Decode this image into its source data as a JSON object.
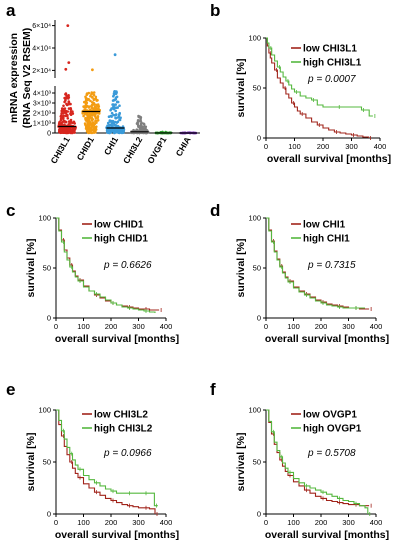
{
  "chart_data": [
    {
      "panel": "a",
      "type": "scatter",
      "ylabel": "mRNA expression\n(RNA Seq V2 RSEM)",
      "yticks_lower": [
        "0",
        "1×10³",
        "2×10³",
        "3×10³",
        "4×10³"
      ],
      "yticks_upper": [
        "2×10⁴",
        "4×10⁴",
        "6×10⁴"
      ],
      "categories": [
        "CHI3L1",
        "CHID1",
        "CHI1",
        "CHI3L2",
        "OVGP1",
        "CHIA"
      ],
      "colors": [
        "#d7261e",
        "#f39c12",
        "#3a9ad9",
        "#7f7f7f",
        "#2ca02c",
        "#7b2fbe"
      ],
      "medians": [
        650,
        2150,
        500,
        120,
        5,
        3
      ],
      "spread_max": [
        4000,
        4100,
        4200,
        1700,
        120,
        40
      ],
      "outliers_high": [
        [
          60000,
          27000,
          21000
        ],
        [
          20500
        ],
        [
          34000
        ],
        [],
        [],
        []
      ]
    },
    {
      "panel": "b",
      "type": "line",
      "xlabel": "overall survival [months]",
      "ylabel": "survival [%]",
      "xlim": [
        0,
        400
      ],
      "ylim": [
        0,
        100
      ],
      "xticks": [
        0,
        100,
        200,
        300,
        400
      ],
      "yticks": [
        0,
        50,
        100
      ],
      "p_value": "p = 0.0007",
      "series": [
        {
          "name": "low CHI3L1",
          "color": "#a1241b",
          "points": [
            [
              0,
              100
            ],
            [
              5,
              92
            ],
            [
              10,
              85
            ],
            [
              15,
              80
            ],
            [
              20,
              75
            ],
            [
              30,
              68
            ],
            [
              40,
              60
            ],
            [
              50,
              55
            ],
            [
              60,
              50
            ],
            [
              70,
              44
            ],
            [
              80,
              40
            ],
            [
              90,
              35
            ],
            [
              100,
              31
            ],
            [
              110,
              27
            ],
            [
              120,
              24
            ],
            [
              140,
              20
            ],
            [
              160,
              16
            ],
            [
              180,
              13
            ],
            [
              200,
              10
            ],
            [
              220,
              8
            ],
            [
              240,
              6
            ],
            [
              260,
              5
            ],
            [
              280,
              4
            ],
            [
              300,
              3
            ],
            [
              320,
              2
            ],
            [
              340,
              1
            ],
            [
              360,
              0
            ]
          ]
        },
        {
          "name": "high CHI3L1",
          "color": "#55b83f",
          "points": [
            [
              0,
              100
            ],
            [
              5,
              95
            ],
            [
              10,
              90
            ],
            [
              20,
              83
            ],
            [
              30,
              77
            ],
            [
              40,
              71
            ],
            [
              50,
              66
            ],
            [
              60,
              61
            ],
            [
              70,
              57
            ],
            [
              80,
              53
            ],
            [
              90,
              49
            ],
            [
              100,
              46
            ],
            [
              120,
              42
            ],
            [
              140,
              40
            ],
            [
              160,
              38
            ],
            [
              180,
              33
            ],
            [
              200,
              31
            ],
            [
              250,
              31
            ],
            [
              300,
              31
            ],
            [
              330,
              31
            ],
            [
              335,
              28
            ],
            [
              360,
              28
            ],
            [
              362,
              22
            ],
            [
              375,
              22
            ]
          ]
        }
      ]
    },
    {
      "panel": "c",
      "type": "line",
      "xlabel": "overall survival [months]",
      "ylabel": "survival [%]",
      "xlim": [
        0,
        400
      ],
      "ylim": [
        0,
        100
      ],
      "xticks": [
        0,
        100,
        200,
        300,
        400
      ],
      "yticks": [
        0,
        50,
        100
      ],
      "p_value": "p = 0.6626",
      "series": [
        {
          "name": "low CHID1",
          "color": "#a1241b",
          "points": [
            [
              0,
              100
            ],
            [
              10,
              88
            ],
            [
              20,
              78
            ],
            [
              30,
              68
            ],
            [
              40,
              60
            ],
            [
              50,
              53
            ],
            [
              60,
              47
            ],
            [
              70,
              42
            ],
            [
              80,
              38
            ],
            [
              100,
              32
            ],
            [
              120,
              27
            ],
            [
              140,
              23
            ],
            [
              160,
              20
            ],
            [
              180,
              17
            ],
            [
              200,
              15
            ],
            [
              220,
              13
            ],
            [
              240,
              12
            ],
            [
              260,
              11
            ],
            [
              280,
              10
            ],
            [
              300,
              9
            ],
            [
              320,
              9
            ],
            [
              340,
              8
            ],
            [
              360,
              8
            ],
            [
              375,
              8
            ]
          ]
        },
        {
          "name": "high CHID1",
          "color": "#55b83f",
          "points": [
            [
              0,
              100
            ],
            [
              10,
              87
            ],
            [
              20,
              76
            ],
            [
              30,
              66
            ],
            [
              40,
              58
            ],
            [
              50,
              51
            ],
            [
              60,
              46
            ],
            [
              70,
              41
            ],
            [
              80,
              37
            ],
            [
              100,
              31
            ],
            [
              120,
              27
            ],
            [
              140,
              24
            ],
            [
              160,
              21
            ],
            [
              180,
              18
            ],
            [
              200,
              15
            ],
            [
              220,
              13
            ],
            [
              240,
              11
            ],
            [
              260,
              10
            ],
            [
              280,
              9
            ],
            [
              300,
              8
            ],
            [
              320,
              7
            ],
            [
              340,
              6
            ],
            [
              360,
              5
            ]
          ]
        }
      ]
    },
    {
      "panel": "d",
      "type": "line",
      "xlabel": "overall survival [months]",
      "ylabel": "survival [%]",
      "xlim": [
        0,
        400
      ],
      "ylim": [
        0,
        100
      ],
      "xticks": [
        0,
        100,
        200,
        300,
        400
      ],
      "yticks": [
        0,
        50,
        100
      ],
      "p_value": "p = 0.7315",
      "series": [
        {
          "name": "low CHI1",
          "color": "#a1241b",
          "points": [
            [
              0,
              100
            ],
            [
              10,
              88
            ],
            [
              20,
              77
            ],
            [
              30,
              67
            ],
            [
              40,
              59
            ],
            [
              50,
              52
            ],
            [
              60,
              46
            ],
            [
              70,
              41
            ],
            [
              80,
              37
            ],
            [
              100,
              31
            ],
            [
              120,
              27
            ],
            [
              140,
              24
            ],
            [
              160,
              21
            ],
            [
              180,
              18
            ],
            [
              200,
              16
            ],
            [
              220,
              14
            ],
            [
              240,
              13
            ],
            [
              260,
              12
            ],
            [
              280,
              11
            ],
            [
              300,
              10
            ],
            [
              320,
              10
            ],
            [
              340,
              9
            ],
            [
              360,
              9
            ],
            [
              375,
              9
            ]
          ]
        },
        {
          "name": "high CHI1",
          "color": "#55b83f",
          "points": [
            [
              0,
              100
            ],
            [
              10,
              87
            ],
            [
              20,
              76
            ],
            [
              30,
              66
            ],
            [
              40,
              58
            ],
            [
              50,
              51
            ],
            [
              60,
              45
            ],
            [
              70,
              40
            ],
            [
              80,
              36
            ],
            [
              100,
              30
            ],
            [
              120,
              26
            ],
            [
              140,
              23
            ],
            [
              160,
              20
            ],
            [
              180,
              17
            ],
            [
              200,
              15
            ],
            [
              220,
              13
            ],
            [
              240,
              12
            ],
            [
              260,
              11
            ],
            [
              280,
              10
            ],
            [
              300,
              10
            ],
            [
              320,
              10
            ],
            [
              340,
              10
            ],
            [
              360,
              10
            ]
          ]
        }
      ]
    },
    {
      "panel": "e",
      "type": "line",
      "xlabel": "overall survival [months]",
      "ylabel": "survival [%]",
      "xlim": [
        0,
        400
      ],
      "ylim": [
        0,
        100
      ],
      "xticks": [
        0,
        100,
        200,
        300,
        400
      ],
      "yticks": [
        0,
        50,
        100
      ],
      "p_value": "p = 0.0966",
      "series": [
        {
          "name": "low CHI3L2",
          "color": "#a1241b",
          "points": [
            [
              0,
              100
            ],
            [
              10,
              86
            ],
            [
              20,
              75
            ],
            [
              30,
              65
            ],
            [
              40,
              57
            ],
            [
              50,
              50
            ],
            [
              60,
              44
            ],
            [
              70,
              39
            ],
            [
              80,
              35
            ],
            [
              100,
              29
            ],
            [
              120,
              25
            ],
            [
              140,
              21
            ],
            [
              160,
              18
            ],
            [
              180,
              15
            ],
            [
              200,
              13
            ],
            [
              220,
              11
            ],
            [
              240,
              9
            ],
            [
              260,
              8
            ],
            [
              280,
              7
            ],
            [
              300,
              6
            ],
            [
              320,
              6
            ],
            [
              340,
              5
            ],
            [
              355,
              5
            ],
            [
              360,
              0
            ]
          ]
        },
        {
          "name": "high CHI3L2",
          "color": "#55b83f",
          "points": [
            [
              0,
              100
            ],
            [
              10,
              90
            ],
            [
              20,
              80
            ],
            [
              30,
              72
            ],
            [
              40,
              64
            ],
            [
              50,
              58
            ],
            [
              60,
              52
            ],
            [
              70,
              47
            ],
            [
              80,
              43
            ],
            [
              100,
              37
            ],
            [
              120,
              33
            ],
            [
              140,
              30
            ],
            [
              160,
              27
            ],
            [
              180,
              24
            ],
            [
              200,
              22
            ],
            [
              220,
              20
            ],
            [
              240,
              20
            ],
            [
              260,
              20
            ],
            [
              280,
              20
            ],
            [
              300,
              20
            ],
            [
              320,
              20
            ],
            [
              340,
              20
            ],
            [
              355,
              20
            ],
            [
              358,
              8
            ],
            [
              370,
              8
            ]
          ]
        }
      ]
    },
    {
      "panel": "f",
      "type": "line",
      "xlabel": "overall survival [months]",
      "ylabel": "survival [%]",
      "xlim": [
        0,
        400
      ],
      "ylim": [
        0,
        100
      ],
      "xticks": [
        0,
        100,
        200,
        300,
        400
      ],
      "yticks": [
        0,
        50,
        100
      ],
      "p_value": "p = 0.5708",
      "series": [
        {
          "name": "low OVGP1",
          "color": "#a1241b",
          "points": [
            [
              0,
              100
            ],
            [
              10,
              88
            ],
            [
              20,
              77
            ],
            [
              30,
              67
            ],
            [
              40,
              59
            ],
            [
              50,
              52
            ],
            [
              60,
              46
            ],
            [
              70,
              41
            ],
            [
              80,
              37
            ],
            [
              100,
              31
            ],
            [
              120,
              27
            ],
            [
              140,
              23
            ],
            [
              160,
              20
            ],
            [
              180,
              17
            ],
            [
              200,
              15
            ],
            [
              220,
              13
            ],
            [
              240,
              12
            ],
            [
              260,
              11
            ],
            [
              280,
              10
            ],
            [
              300,
              9
            ],
            [
              320,
              9
            ],
            [
              340,
              8
            ],
            [
              360,
              8
            ],
            [
              375,
              8
            ]
          ]
        },
        {
          "name": "high OVGP1",
          "color": "#55b83f",
          "points": [
            [
              0,
              100
            ],
            [
              10,
              89
            ],
            [
              20,
              79
            ],
            [
              30,
              69
            ],
            [
              40,
              61
            ],
            [
              50,
              55
            ],
            [
              60,
              49
            ],
            [
              70,
              44
            ],
            [
              80,
              40
            ],
            [
              100,
              34
            ],
            [
              120,
              30
            ],
            [
              140,
              27
            ],
            [
              160,
              25
            ],
            [
              180,
              23
            ],
            [
              200,
              21
            ],
            [
              220,
              19
            ],
            [
              240,
              17
            ],
            [
              260,
              15
            ],
            [
              280,
              13
            ],
            [
              300,
              12
            ],
            [
              320,
              10
            ],
            [
              340,
              8
            ],
            [
              360,
              6
            ],
            [
              370,
              0
            ]
          ]
        }
      ]
    }
  ]
}
